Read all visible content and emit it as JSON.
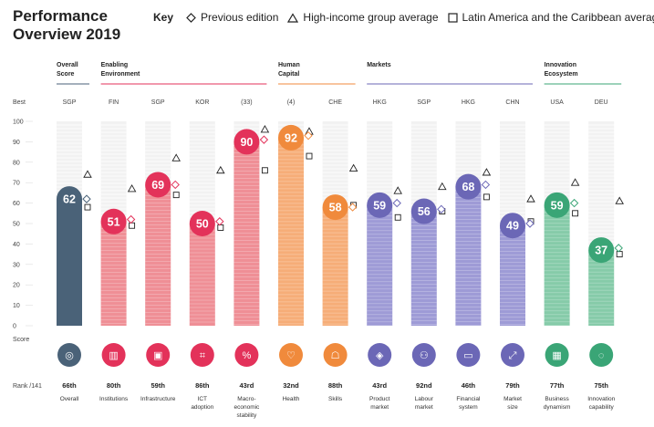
{
  "title_line1": "Performance",
  "title_line2": "Overview 2019",
  "key": {
    "label": "Key",
    "previous": "Previous edition",
    "high_income": "High-income group average",
    "lac": "Latin America and the Caribbean average"
  },
  "axis": {
    "best_label": "Best",
    "score_label": "Score",
    "rank_label": "Rank /141",
    "ticks": [
      "0",
      "10",
      "20",
      "30",
      "40",
      "50",
      "60",
      "70",
      "80",
      "90",
      "100"
    ]
  },
  "groups": [
    {
      "line1": "Overall",
      "line2": "Score",
      "color": "#4a6278"
    },
    {
      "line1": "Enabling",
      "line2": "Environment",
      "color": "#e3325a"
    },
    {
      "line1": "Human",
      "line2": "Capital",
      "color": "#f08a3c"
    },
    {
      "line1": "Markets",
      "line2": "",
      "color": "#6b67b6"
    },
    {
      "line1": "Innovation",
      "line2": "Ecosystem",
      "color": "#3aa576"
    }
  ],
  "chart_data": {
    "type": "bar",
    "ylim": [
      0,
      100
    ],
    "categories": [
      "Overall",
      "Institutions",
      "Infrastructure",
      "ICT adoption",
      "Macro-economic stability",
      "Health",
      "Skills",
      "Product market",
      "Labour market",
      "Financial system",
      "Market size",
      "Business dynamism",
      "Innovation capability"
    ],
    "values": [
      62,
      51,
      69,
      50,
      90,
      92,
      58,
      59,
      56,
      68,
      49,
      59,
      37
    ],
    "previous_edition": [
      62,
      52,
      69,
      51,
      91,
      93,
      58,
      60,
      57,
      69,
      50,
      60,
      38
    ],
    "high_income_avg": [
      74,
      67,
      82,
      76,
      96,
      95,
      77,
      66,
      68,
      75,
      62,
      70,
      61
    ],
    "lac_avg": [
      58,
      49,
      64,
      48,
      76,
      83,
      59,
      53,
      56,
      63,
      51,
      55,
      35
    ],
    "best": [
      "SGP",
      "FIN",
      "SGP",
      "KOR",
      "(33)",
      "(4)",
      "CHE",
      "HKG",
      "SGP",
      "HKG",
      "CHN",
      "USA",
      "DEU"
    ],
    "ranks": [
      "66th",
      "80th",
      "59th",
      "86th",
      "43rd",
      "32nd",
      "88th",
      "43rd",
      "92nd",
      "46th",
      "79th",
      "77th",
      "75th"
    ],
    "labels": [
      [
        "Overall"
      ],
      [
        "Institutions"
      ],
      [
        "Infrastructure"
      ],
      [
        "ICT",
        "adoption"
      ],
      [
        "Macro-",
        "economic",
        "stability"
      ],
      [
        "Health"
      ],
      [
        "Skills"
      ],
      [
        "Product",
        "market"
      ],
      [
        "Labour",
        "market"
      ],
      [
        "Financial",
        "system"
      ],
      [
        "Market",
        "size"
      ],
      [
        "Business",
        "dynamism"
      ],
      [
        "Innovation",
        "capability"
      ]
    ],
    "group_index": [
      0,
      1,
      1,
      1,
      1,
      2,
      2,
      3,
      3,
      3,
      3,
      4,
      4
    ],
    "colors": {
      "bar": [
        "#4a6278",
        "#ef8f96",
        "#ef8f96",
        "#ef8f96",
        "#ef8f96",
        "#f6ad78",
        "#f6ad78",
        "#9e9bd6",
        "#9e9bd6",
        "#9e9bd6",
        "#9e9bd6",
        "#86cba9",
        "#86cba9"
      ],
      "bubble": [
        "#4a6278",
        "#e3325a",
        "#e3325a",
        "#e3325a",
        "#e3325a",
        "#f08a3c",
        "#f08a3c",
        "#6b67b6",
        "#6b67b6",
        "#6b67b6",
        "#6b67b6",
        "#3aa576",
        "#3aa576"
      ],
      "prev_marker": [
        "#4a6278",
        "#e3325a",
        "#e3325a",
        "#e3325a",
        "#e3325a",
        "#f08a3c",
        "#f08a3c",
        "#6b67b6",
        "#6b67b6",
        "#6b67b6",
        "#6b67b6",
        "#3aa576",
        "#3aa576"
      ]
    },
    "icons": [
      "medal-icon",
      "institution-building-icon",
      "train-icon",
      "chip-icon",
      "percent-arrow-icon",
      "heart-pulse-icon",
      "graduate-icon",
      "tag-icon",
      "people-icon",
      "card-icon",
      "expand-icon",
      "chart-icon",
      "lightbulb-icon"
    ]
  }
}
